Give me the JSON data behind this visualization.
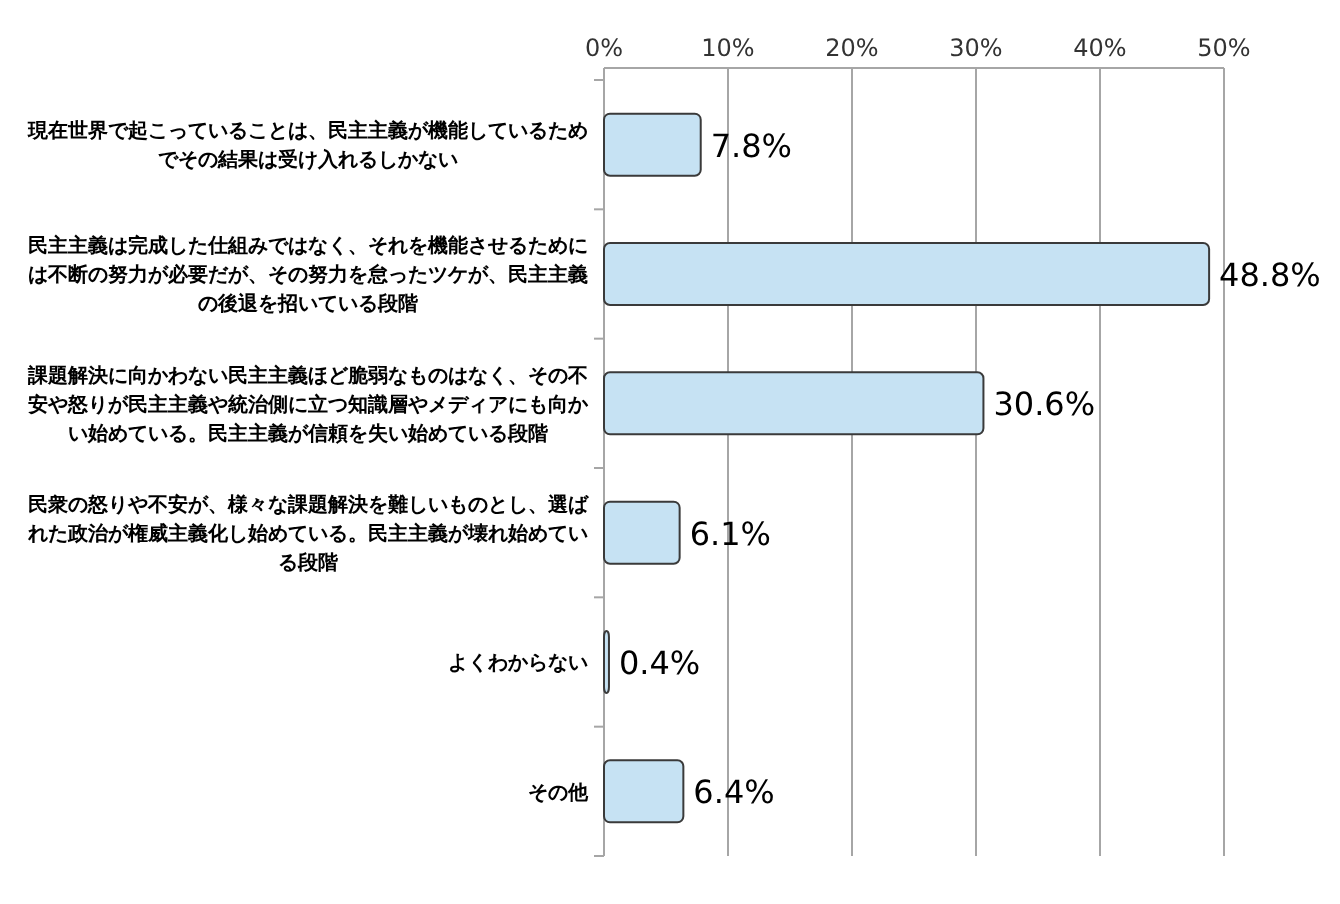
{
  "chart_data": {
    "type": "bar",
    "orientation": "horizontal",
    "categories": [
      "現在世界で起こっていることは、民主主義が機能しているためでその結果は受け入れるしかない",
      "民主主義は完成した仕組みではなく、それを機能させるためには不断の努力が必要だが、その努力を怠ったツケが、民主主義の後退を招いている段階",
      "課題解決に向かわない民主主義ほど脆弱なものはなく、その不安や怒りが民主主義や統治側に立つ知識層やメディアにも向かい始めている。民主主義が信頼を失い始めている段階",
      "民衆の怒りや不安が、様々な課題解決を難しいものとし、選ばれた政治が権威主義化し始めている。民主主義が壊れ始めている段階",
      "よくわからない",
      "その他"
    ],
    "values": [
      7.8,
      48.8,
      30.6,
      6.1,
      0.4,
      6.4
    ],
    "value_labels": [
      "7.8%",
      "48.8%",
      "30.6%",
      "6.1%",
      "0.4%",
      "6.4%"
    ],
    "color": "#c6e2f3",
    "xlim": [
      0,
      50
    ],
    "xticks": [
      {
        "value": 0,
        "label": "0%"
      },
      {
        "value": 10,
        "label": "10%"
      },
      {
        "value": 20,
        "label": "20%"
      },
      {
        "value": 30,
        "label": "30%"
      },
      {
        "value": 40,
        "label": "40%"
      },
      {
        "value": 50,
        "label": "50%"
      }
    ],
    "grid": "x"
  }
}
